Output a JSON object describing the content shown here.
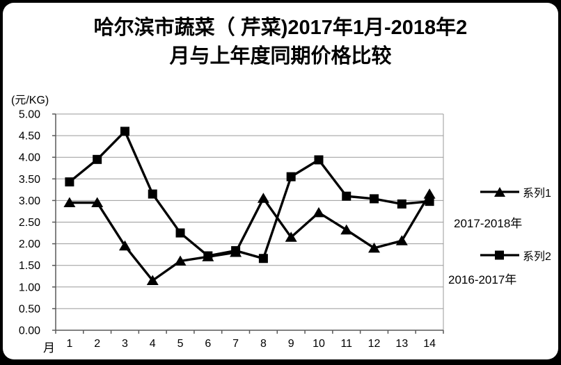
{
  "title": {
    "line1": "哈尔滨市蔬菜（ 芹菜)2017年1月-2018年2",
    "line2": "月与上年度同期价格比较"
  },
  "y_axis": {
    "unit": "(元/KG)",
    "ticks": [
      "5.00",
      "4.50",
      "4.00",
      "3.50",
      "3.00",
      "2.50",
      "2.00",
      "1.50",
      "1.00",
      "0.50",
      "0.00"
    ]
  },
  "x_axis": {
    "label": "月",
    "categories": [
      "1",
      "2",
      "3",
      "4",
      "5",
      "6",
      "7",
      "8",
      "9",
      "10",
      "11",
      "12",
      "13",
      "14"
    ]
  },
  "legend": {
    "series1": {
      "label": "系列1",
      "year": "2017-2018年",
      "marker": "triangle-marker-icon"
    },
    "series2": {
      "label": "系列2",
      "year": "2016-2017年",
      "marker": "square-marker-icon"
    }
  },
  "chart_data": {
    "type": "line",
    "title": "哈尔滨市蔬菜（ 芹菜)2017年1月-2018年2月与上年度同期价格比较",
    "xlabel": "月",
    "ylabel": "(元/KG)",
    "ylim": [
      0,
      5
    ],
    "ytick_step": 0.5,
    "grid": true,
    "legend_position": "right",
    "categories": [
      "1",
      "2",
      "3",
      "4",
      "5",
      "6",
      "7",
      "8",
      "9",
      "10",
      "11",
      "12",
      "13",
      "14"
    ],
    "series": [
      {
        "name": "系列1",
        "period": "2017-2018年",
        "marker": "triangle",
        "values": [
          2.95,
          2.95,
          1.95,
          1.15,
          1.6,
          1.7,
          1.8,
          3.05,
          2.15,
          2.72,
          2.32,
          1.9,
          2.07,
          3.15
        ]
      },
      {
        "name": "系列2",
        "period": "2016-2017年",
        "marker": "square",
        "values": [
          3.43,
          3.95,
          4.6,
          3.15,
          2.25,
          1.72,
          1.84,
          1.66,
          3.55,
          3.94,
          3.1,
          3.04,
          2.92,
          2.98
        ]
      }
    ],
    "colors": {
      "line": "#000000",
      "grid": "#9a9a9a",
      "axis": "#595959",
      "frame": "#000000",
      "background": "#ffffff"
    }
  }
}
